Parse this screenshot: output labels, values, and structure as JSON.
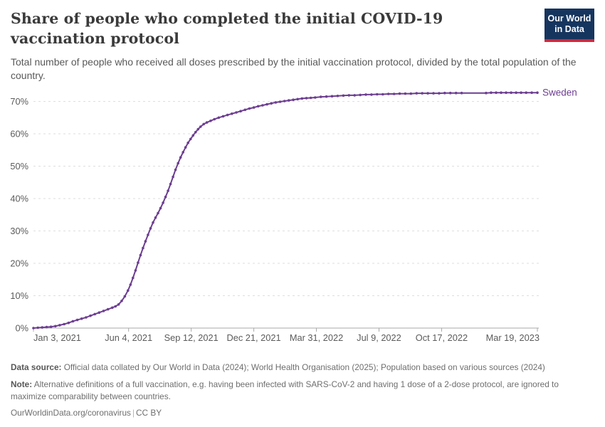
{
  "header": {
    "title": "Share of people who completed the initial COVID-19 vaccination protocol",
    "subtitle": "Total number of people who received all doses prescribed by the initial vaccination protocol, divided by the total population of the country.",
    "logo_line1": "Our World",
    "logo_line2": "in Data"
  },
  "colors": {
    "series": "#6d3e91",
    "grid": "#dedede",
    "axis": "#a8a8a8",
    "tick_text": "#5b5b5b",
    "logo_navy": "#16355e",
    "logo_red": "#d2263c"
  },
  "chart_data": {
    "type": "line",
    "title": "Share of people who completed the initial COVID-19 vaccination protocol",
    "x_span_days": 805,
    "ylim": [
      0,
      73
    ],
    "grid": "dashed-horizontal",
    "legend_position": "end-of-line",
    "y_ticks": [
      {
        "label": "0%",
        "value": 0
      },
      {
        "label": "10%",
        "value": 10
      },
      {
        "label": "20%",
        "value": 20
      },
      {
        "label": "30%",
        "value": 30
      },
      {
        "label": "40%",
        "value": 40
      },
      {
        "label": "50%",
        "value": 50
      },
      {
        "label": "60%",
        "value": 60
      },
      {
        "label": "70%",
        "value": 70
      }
    ],
    "x_ticks": [
      {
        "label": "Jan 3, 2021",
        "day": 0
      },
      {
        "label": "Jun 4, 2021",
        "day": 152
      },
      {
        "label": "Sep 12, 2021",
        "day": 252
      },
      {
        "label": "Dec 21, 2021",
        "day": 352
      },
      {
        "label": "Mar 31, 2022",
        "day": 452
      },
      {
        "label": "Jul 9, 2022",
        "day": 552
      },
      {
        "label": "Oct 17, 2022",
        "day": 652
      },
      {
        "label": "Mar 19, 2023",
        "day": 805
      }
    ],
    "series": [
      {
        "name": "Sweden",
        "color": "#6d3e91",
        "points": [
          [
            0,
            0
          ],
          [
            7,
            0.1
          ],
          [
            14,
            0.2
          ],
          [
            21,
            0.3
          ],
          [
            28,
            0.4
          ],
          [
            35,
            0.6
          ],
          [
            42,
            0.9
          ],
          [
            49,
            1.2
          ],
          [
            56,
            1.6
          ],
          [
            63,
            2.1
          ],
          [
            70,
            2.5
          ],
          [
            77,
            2.9
          ],
          [
            84,
            3.3
          ],
          [
            91,
            3.8
          ],
          [
            98,
            4.3
          ],
          [
            105,
            4.8
          ],
          [
            112,
            5.3
          ],
          [
            119,
            5.8
          ],
          [
            126,
            6.3
          ],
          [
            131,
            6.7
          ],
          [
            136,
            7.3
          ],
          [
            141,
            8.4
          ],
          [
            146,
            9.8
          ],
          [
            151,
            11.6
          ],
          [
            155,
            13.4
          ],
          [
            159,
            15.5
          ],
          [
            163,
            17.8
          ],
          [
            167,
            20.2
          ],
          [
            171,
            22.5
          ],
          [
            175,
            24.7
          ],
          [
            179,
            26.8
          ],
          [
            183,
            28.8
          ],
          [
            187,
            30.8
          ],
          [
            191,
            32.6
          ],
          [
            195,
            34.1
          ],
          [
            199,
            35.5
          ],
          [
            203,
            37.0
          ],
          [
            207,
            38.7
          ],
          [
            211,
            40.5
          ],
          [
            215,
            42.4
          ],
          [
            219,
            44.5
          ],
          [
            223,
            46.7
          ],
          [
            227,
            48.9
          ],
          [
            231,
            50.9
          ],
          [
            235,
            52.7
          ],
          [
            239,
            54.3
          ],
          [
            243,
            55.8
          ],
          [
            247,
            57.2
          ],
          [
            251,
            58.4
          ],
          [
            255,
            59.5
          ],
          [
            259,
            60.5
          ],
          [
            263,
            61.4
          ],
          [
            267,
            62.2
          ],
          [
            272,
            63.0
          ],
          [
            277,
            63.5
          ],
          [
            283,
            64.0
          ],
          [
            289,
            64.5
          ],
          [
            296,
            65.0
          ],
          [
            303,
            65.4
          ],
          [
            310,
            65.8
          ],
          [
            317,
            66.2
          ],
          [
            324,
            66.6
          ],
          [
            331,
            67.0
          ],
          [
            338,
            67.4
          ],
          [
            345,
            67.8
          ],
          [
            352,
            68.1
          ],
          [
            359,
            68.5
          ],
          [
            366,
            68.8
          ],
          [
            373,
            69.1
          ],
          [
            380,
            69.4
          ],
          [
            387,
            69.7
          ],
          [
            394,
            69.9
          ],
          [
            401,
            70.1
          ],
          [
            408,
            70.3
          ],
          [
            415,
            70.5
          ],
          [
            422,
            70.7
          ],
          [
            429,
            70.9
          ],
          [
            436,
            71.0
          ],
          [
            443,
            71.1
          ],
          [
            450,
            71.2
          ],
          [
            459,
            71.4
          ],
          [
            468,
            71.5
          ],
          [
            477,
            71.6
          ],
          [
            486,
            71.7
          ],
          [
            495,
            71.8
          ],
          [
            504,
            71.9
          ],
          [
            513,
            71.9
          ],
          [
            522,
            72.0
          ],
          [
            531,
            72.1
          ],
          [
            540,
            72.1
          ],
          [
            549,
            72.2
          ],
          [
            558,
            72.2
          ],
          [
            567,
            72.3
          ],
          [
            576,
            72.3
          ],
          [
            585,
            72.4
          ],
          [
            594,
            72.4
          ],
          [
            603,
            72.4
          ],
          [
            612,
            72.5
          ],
          [
            621,
            72.5
          ],
          [
            630,
            72.5
          ],
          [
            639,
            72.5
          ],
          [
            648,
            72.5
          ],
          [
            657,
            72.6
          ],
          [
            666,
            72.6
          ],
          [
            675,
            72.6
          ],
          [
            684,
            72.6
          ],
          [
            723,
            72.6
          ],
          [
            731,
            72.7
          ],
          [
            739,
            72.7
          ],
          [
            747,
            72.7
          ],
          [
            755,
            72.7
          ],
          [
            763,
            72.7
          ],
          [
            771,
            72.7
          ],
          [
            779,
            72.7
          ],
          [
            787,
            72.7
          ],
          [
            796,
            72.7
          ],
          [
            805,
            72.7
          ]
        ]
      }
    ]
  },
  "footer": {
    "data_source_label": "Data source:",
    "data_source_text": " Official data collated by Our World in Data (2024); World Health Organisation (2025); Population based on various sources (2024)",
    "note_label": "Note:",
    "note_text": " Alternative definitions of a full vaccination, e.g. having been infected with SARS-CoV-2 and having 1 dose of a 2-dose protocol, are ignored to maximize comparability between countries.",
    "link": "OurWorldinData.org/coronavirus",
    "separator": "|",
    "license": "CC BY"
  }
}
